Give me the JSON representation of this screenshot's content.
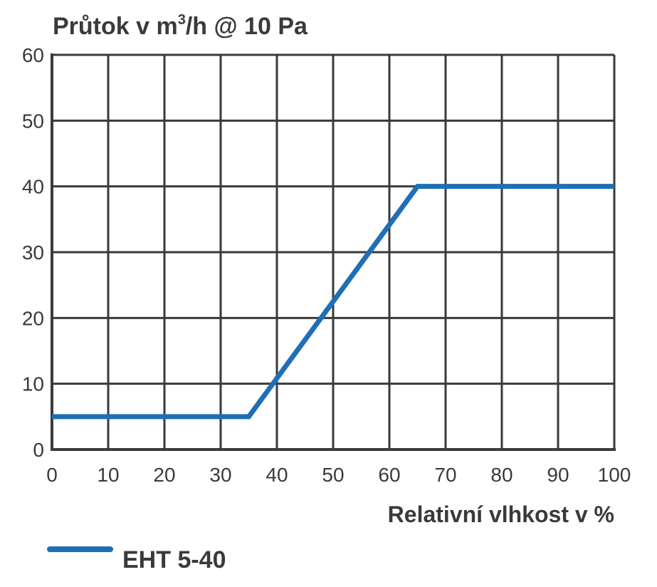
{
  "chart_data": {
    "type": "line",
    "ylabel_prefix": "Průtok v m",
    "ylabel_sup": "3",
    "ylabel_suffix": "/h @ 10 Pa",
    "xlabel": "Relativní vlhkost v %",
    "xlim": [
      0,
      100
    ],
    "ylim": [
      0,
      60
    ],
    "xticks": [
      "0",
      "10",
      "20",
      "30",
      "40",
      "50",
      "60",
      "70",
      "80",
      "90",
      "100"
    ],
    "yticks": [
      "0",
      "10",
      "20",
      "30",
      "40",
      "50",
      "60"
    ],
    "grid": true,
    "legend_position": "bottom-left",
    "series": [
      {
        "name": "EHT 5-40",
        "color": "#1f6fb5",
        "x": [
          0,
          35,
          65,
          100
        ],
        "y": [
          5,
          5,
          40,
          40
        ]
      }
    ]
  }
}
